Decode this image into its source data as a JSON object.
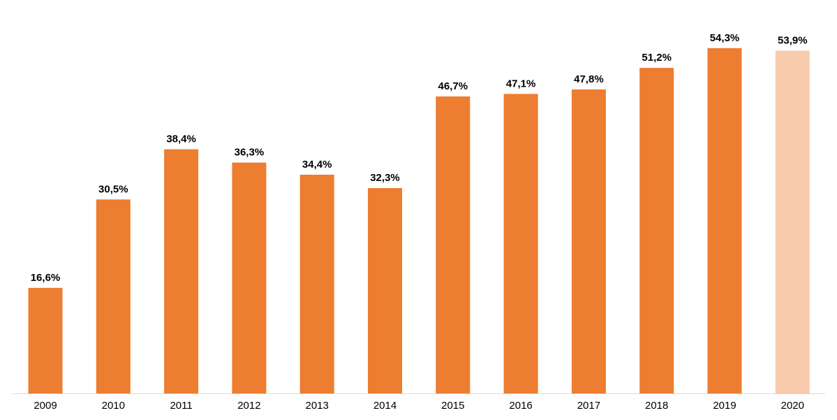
{
  "colors": {
    "bar": "#ED7D31",
    "bar_highlight": "#F8CBAD",
    "axis_line": "#D9D9D9",
    "label_text": "#000000"
  },
  "chart_data": {
    "type": "bar",
    "title": "",
    "xlabel": "",
    "ylabel": "",
    "categories": [
      "2009",
      "2010",
      "2011",
      "2012",
      "2013",
      "2014",
      "2015",
      "2016",
      "2017",
      "2018",
      "2019",
      "2020"
    ],
    "values": [
      16.6,
      30.5,
      38.4,
      36.3,
      34.4,
      32.3,
      46.7,
      47.1,
      47.8,
      51.2,
      54.3,
      53.9
    ],
    "value_labels": [
      "16,6%",
      "30,5%",
      "38,4%",
      "36,3%",
      "34,4%",
      "32,3%",
      "46,7%",
      "47,1%",
      "47,8%",
      "51,2%",
      "54,3%",
      "53,9%"
    ],
    "highlighted_category": "2020",
    "ylim": [
      0,
      60
    ],
    "grid": false,
    "legend": "none",
    "y_axis_visible": false
  }
}
